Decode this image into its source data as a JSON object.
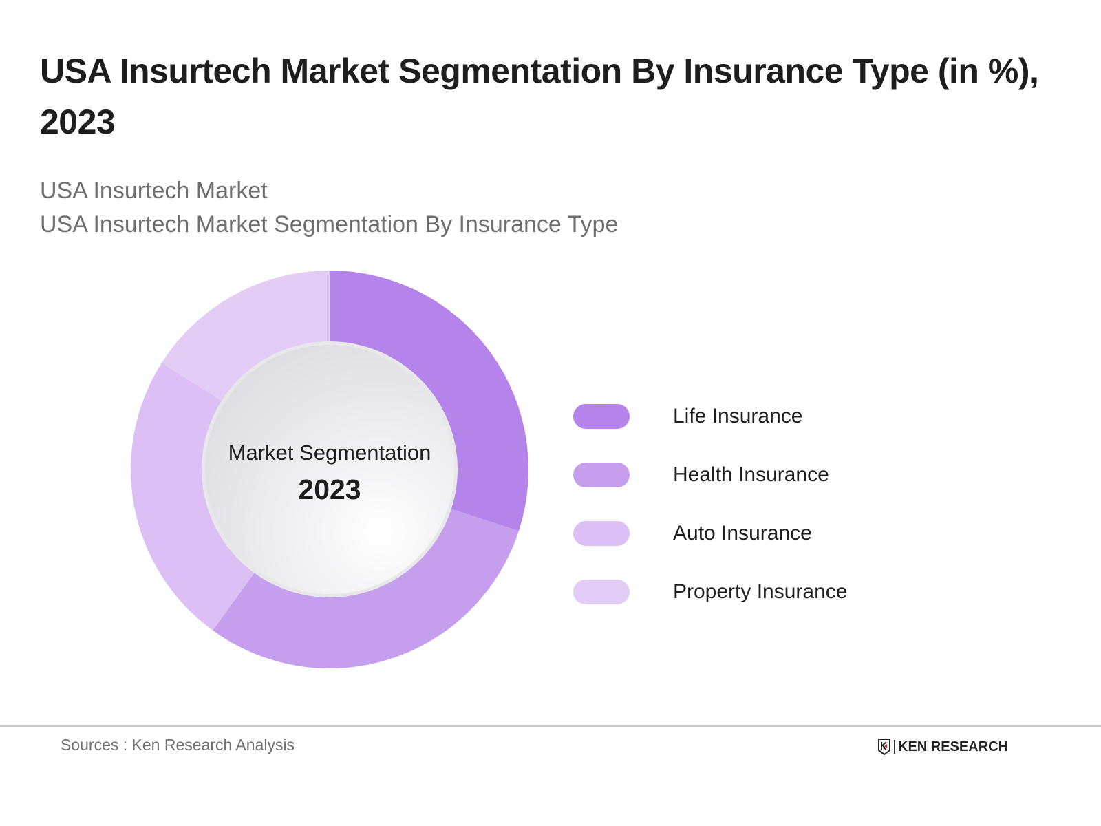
{
  "header": {
    "title": "USA Insurtech Market Segmentation By Insurance Type (in %), 2023",
    "subtitle_line1": "USA Insurtech Market",
    "subtitle_line2": "USA Insurtech Market Segmentation By Insurance Type"
  },
  "center": {
    "label": "Market Segmentation",
    "year": "2023"
  },
  "legend": [
    {
      "label": "Life Insurance",
      "color": "#b584ea"
    },
    {
      "label": "Health Insurance",
      "color": "#c69eee"
    },
    {
      "label": "Auto Insurance",
      "color": "#dbbff5"
    },
    {
      "label": "Property Insurance",
      "color": "#e3cdf7"
    }
  ],
  "footer": {
    "source": "Sources : Ken Research Analysis",
    "logo_text": "KEN RESEARCH"
  },
  "chart_data": {
    "type": "pie",
    "subtype": "donut",
    "title": "USA Insurtech Market Segmentation By Insurance Type (in %), 2023",
    "categories": [
      "Life Insurance",
      "Health Insurance",
      "Auto Insurance",
      "Property Insurance"
    ],
    "values": [
      30,
      30,
      24,
      16
    ],
    "colors": [
      "#b584ea",
      "#c69eee",
      "#dbbff5",
      "#e3cdf7"
    ],
    "center_label": "Market Segmentation 2023",
    "legend_position": "right",
    "data_labels_shown": false
  }
}
